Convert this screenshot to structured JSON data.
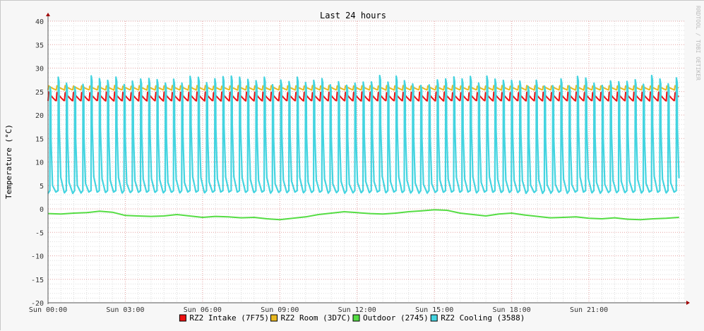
{
  "chart_data": {
    "type": "line",
    "title": "Last 24 hours",
    "ylabel": "Temperature (°C)",
    "watermark": "RRDTOOL / TOBI OETIKER",
    "ylim": [
      -20,
      40
    ],
    "y_ticks": [
      40,
      35,
      30,
      25,
      20,
      15,
      10,
      5,
      0,
      -5,
      -10,
      -15,
      -20
    ],
    "xlim_hours": [
      0,
      24.7
    ],
    "x_ticks": [
      {
        "label": "Sun 00:00",
        "hour": 0
      },
      {
        "label": "Sun 03:00",
        "hour": 3
      },
      {
        "label": "Sun 06:00",
        "hour": 6
      },
      {
        "label": "Sun 09:00",
        "hour": 9
      },
      {
        "label": "Sun 12:00",
        "hour": 12
      },
      {
        "label": "Sun 15:00",
        "hour": 15
      },
      {
        "label": "Sun 18:00",
        "hour": 18
      },
      {
        "label": "Sun 21:00",
        "hour": 21
      }
    ],
    "grid": true,
    "legend_position": "bottom",
    "series": [
      {
        "name": "RZ2 Intake (7F75)",
        "color": "#ee1111",
        "pattern": "sawtooth",
        "cycle_hours": 0.32,
        "min": 23.0,
        "max": 24.9
      },
      {
        "name": "RZ2 Room (3D7C)",
        "color": "#e8b820",
        "pattern": "sawtooth",
        "cycle_hours": 0.32,
        "min": 25.3,
        "max": 26.3
      },
      {
        "name": "Outdoor (2745)",
        "color": "#55dd44",
        "x": [
          0,
          0.5,
          1,
          1.5,
          2,
          2.5,
          3,
          3.5,
          4,
          4.5,
          5,
          5.5,
          6,
          6.5,
          7,
          7.5,
          8,
          8.5,
          9,
          9.5,
          10,
          10.5,
          11,
          11.5,
          12,
          12.5,
          13,
          13.5,
          14,
          14.5,
          15,
          15.5,
          16,
          16.5,
          17,
          17.5,
          18,
          18.5,
          19,
          19.5,
          20,
          20.5,
          21,
          21.5,
          22,
          22.5,
          23,
          23.5,
          24,
          24.5
        ],
        "values": [
          -1.0,
          -1.1,
          -0.9,
          -0.8,
          -0.5,
          -0.7,
          -1.4,
          -1.5,
          -1.6,
          -1.5,
          -1.2,
          -1.5,
          -1.8,
          -1.6,
          -1.7,
          -1.9,
          -1.8,
          -2.1,
          -2.3,
          -2.0,
          -1.7,
          -1.2,
          -0.9,
          -0.6,
          -0.8,
          -1.0,
          -1.1,
          -0.9,
          -0.6,
          -0.4,
          -0.2,
          -0.3,
          -0.9,
          -1.2,
          -1.5,
          -1.1,
          -0.9,
          -1.3,
          -1.6,
          -1.9,
          -1.8,
          -1.7,
          -2.0,
          -2.1,
          -1.9,
          -2.2,
          -2.3,
          -2.1,
          -2.0,
          -1.8
        ]
      },
      {
        "name": "RZ2 Cooling (3588)",
        "color": "#44d4e0",
        "pattern": "cycling",
        "cycle_hours": 0.32,
        "min": 3.3,
        "max": 28.5
      }
    ]
  }
}
